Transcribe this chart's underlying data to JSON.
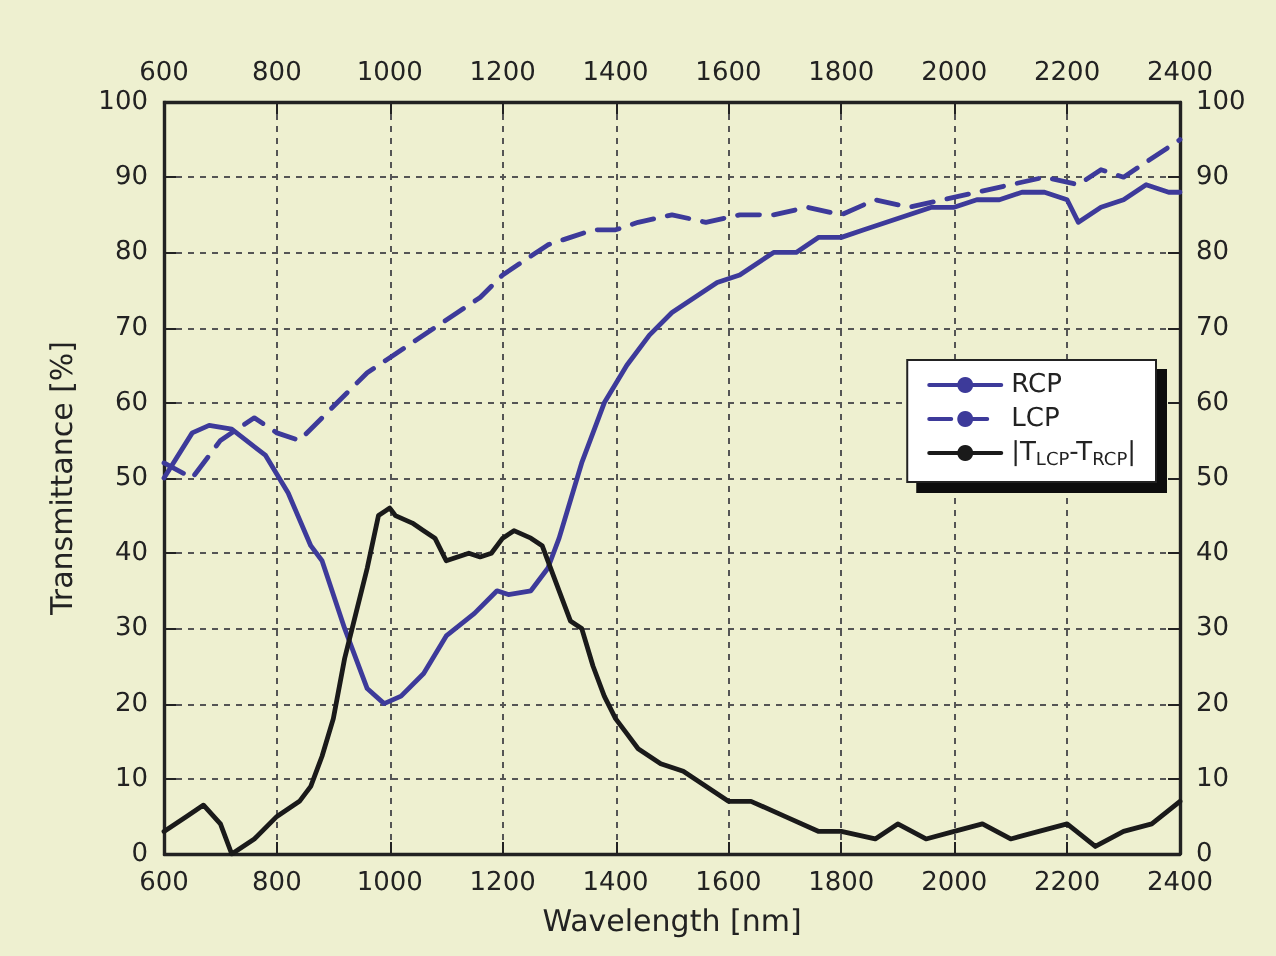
{
  "chart_data": {
    "type": "line",
    "xlabel": "Wavelength [nm]",
    "ylabel": "Transmittance [%]",
    "xlim": [
      600,
      2400
    ],
    "xticks": [
      600,
      800,
      1000,
      1200,
      1400,
      1600,
      1800,
      2000,
      2200,
      2400
    ],
    "x2lim": [
      600,
      2400
    ],
    "x2ticks": [
      600,
      800,
      1000,
      1200,
      1400,
      1600,
      1800,
      2000,
      2200,
      2400
    ],
    "ylim": [
      0,
      100
    ],
    "yticks": [
      0,
      10,
      20,
      30,
      40,
      50,
      60,
      70,
      80,
      90,
      100
    ],
    "y2lim": [
      0,
      100
    ],
    "y2ticks": [
      0,
      10,
      20,
      30,
      40,
      50,
      60,
      70,
      80,
      90,
      100
    ],
    "grid": true,
    "legend": "right",
    "marker": "none",
    "series": [
      {
        "name": "RCP",
        "color": "#3d3a9a",
        "line_style": "solid",
        "x": [
          600,
          650,
          680,
          720,
          780,
          820,
          860,
          880,
          920,
          960,
          990,
          1020,
          1060,
          1100,
          1150,
          1190,
          1210,
          1250,
          1280,
          1300,
          1340,
          1380,
          1420,
          1460,
          1500,
          1540,
          1580,
          1620,
          1680,
          1720,
          1760,
          1800,
          1840,
          1880,
          1920,
          1960,
          2000,
          2040,
          2080,
          2120,
          2160,
          2200,
          2220,
          2260,
          2300,
          2340,
          2380,
          2400
        ],
        "values": [
          50,
          56,
          57,
          56.5,
          53,
          48,
          41,
          39,
          30,
          22,
          20,
          21,
          24,
          29,
          32,
          35,
          34.5,
          35,
          38,
          42,
          52,
          60,
          65,
          69,
          72,
          74,
          76,
          77,
          80,
          80,
          82,
          82,
          83,
          84,
          85,
          86,
          86,
          87,
          87,
          88,
          88,
          87,
          84,
          86,
          87,
          89,
          88,
          88
        ]
      },
      {
        "name": "LCP",
        "color": "#3d3a9a",
        "line_style": "dashed",
        "x": [
          600,
          650,
          700,
          760,
          800,
          840,
          880,
          920,
          960,
          1000,
          1040,
          1080,
          1120,
          1160,
          1200,
          1240,
          1280,
          1320,
          1360,
          1400,
          1440,
          1500,
          1560,
          1620,
          1680,
          1740,
          1800,
          1860,
          1920,
          1980,
          2040,
          2100,
          2160,
          2220,
          2260,
          2300,
          2340,
          2400
        ],
        "values": [
          52,
          50,
          55,
          58,
          56,
          55,
          58,
          61,
          64,
          66,
          68,
          70,
          72,
          74,
          77,
          79,
          81,
          82,
          83,
          83,
          84,
          85,
          84,
          85,
          85,
          86,
          85,
          87,
          86,
          87,
          88,
          89,
          90,
          89,
          91,
          90,
          92,
          95
        ]
      },
      {
        "name": "|T$_{LCP}$-T$_{RCP}$|",
        "color": "#1a1a1a",
        "line_style": "solid",
        "x": [
          600,
          640,
          670,
          700,
          720,
          760,
          800,
          840,
          860,
          880,
          900,
          920,
          940,
          960,
          980,
          1000,
          1010,
          1040,
          1060,
          1080,
          1100,
          1140,
          1160,
          1180,
          1200,
          1220,
          1250,
          1270,
          1300,
          1320,
          1340,
          1360,
          1380,
          1400,
          1420,
          1440,
          1480,
          1520,
          1560,
          1600,
          1640,
          1700,
          1760,
          1800,
          1860,
          1900,
          1950,
          2000,
          2050,
          2100,
          2150,
          2200,
          2250,
          2300,
          2350,
          2400
        ],
        "values": [
          3,
          5,
          6.5,
          4,
          0,
          2,
          5,
          7,
          9,
          13,
          18,
          26,
          32,
          38,
          45,
          46,
          45,
          44,
          43,
          42,
          39,
          40,
          39.5,
          40,
          42,
          43,
          42,
          41,
          35,
          31,
          30,
          25,
          21,
          18,
          16,
          14,
          12,
          11,
          9,
          7,
          7,
          5,
          3,
          3,
          2,
          4,
          2,
          3,
          4,
          2,
          3,
          4,
          1,
          3,
          4,
          7
        ]
      }
    ]
  }
}
